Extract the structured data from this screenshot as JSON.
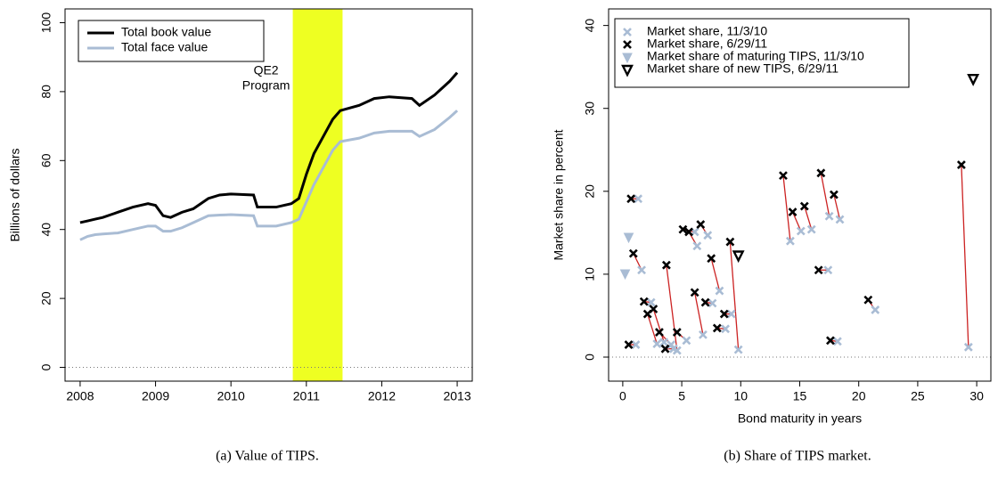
{
  "chart_data": [
    {
      "type": "line",
      "ylabel": "Billions of dollars",
      "caption": "(a)  Value of TIPS.",
      "x": [
        2008.0,
        2008.1,
        2008.2,
        2008.3,
        2008.5,
        2008.7,
        2008.9,
        2009.0,
        2009.1,
        2009.2,
        2009.35,
        2009.5,
        2009.7,
        2009.85,
        2010.0,
        2010.3,
        2010.35,
        2010.6,
        2010.8,
        2010.9,
        2011.0,
        2011.1,
        2011.25,
        2011.35,
        2011.45,
        2011.7,
        2011.9,
        2012.1,
        2012.4,
        2012.5,
        2012.7,
        2012.9,
        2013.0
      ],
      "series": [
        {
          "name": "Total book value",
          "color": "#000000",
          "values": [
            42,
            42.5,
            43,
            43.5,
            45,
            46.5,
            47.5,
            47,
            44,
            43.5,
            45,
            46,
            49,
            50,
            50.3,
            50,
            46.5,
            46.5,
            47.5,
            49,
            56,
            62,
            68,
            72,
            74.5,
            76,
            78,
            78.5,
            78,
            76,
            79,
            83,
            85.5
          ]
        },
        {
          "name": "Total face value",
          "color": "#a9bcd4",
          "values": [
            37,
            38,
            38.5,
            38.7,
            39,
            40,
            41,
            41,
            39.5,
            39.5,
            40.5,
            42,
            44,
            44.2,
            44.3,
            44,
            41,
            41,
            42,
            43,
            48,
            53,
            59,
            63,
            65.5,
            66.5,
            68,
            68.5,
            68.5,
            67,
            69,
            72.5,
            74.5
          ]
        }
      ],
      "xlim": [
        2007.8,
        2013.2
      ],
      "xticks": [
        2008,
        2009,
        2010,
        2011,
        2012,
        2013
      ],
      "ylim": [
        -4,
        104
      ],
      "yticks": [
        0,
        20,
        40,
        60,
        80,
        100
      ],
      "shade": {
        "xmin": 2010.82,
        "xmax": 2011.48,
        "color": "#eeff22"
      },
      "annotation": [
        "QE2",
        "Program"
      ],
      "hline": 0
    },
    {
      "type": "scatter",
      "xlabel": "Bond maturity in years",
      "ylabel": "Market share in percent",
      "caption": "(b)  Share of TIPS market.",
      "series": [
        {
          "name": "Market share, 11/3/10",
          "color": "#a9bcd4",
          "marker": "x",
          "x": [
            1.1,
            1.3,
            1.6,
            2.4,
            2.9,
            3.5,
            4.1,
            4.3,
            4.6,
            5.4,
            6.1,
            6.3,
            6.8,
            7.2,
            7.6,
            8.2,
            8.7,
            9.2,
            9.8,
            14.2,
            15.1,
            16.0,
            17.4,
            17.5,
            18.2,
            18.4,
            21.4,
            29.3
          ],
          "values": [
            1.5,
            19.1,
            10.5,
            6.6,
            1.6,
            1.8,
            1.5,
            1.0,
            0.8,
            2.0,
            15.1,
            13.4,
            2.7,
            14.7,
            6.5,
            8.0,
            3.4,
            5.2,
            0.9,
            14.0,
            15.2,
            15.4,
            10.5,
            17.0,
            1.9,
            16.6,
            5.7,
            1.2
          ]
        },
        {
          "name": "Market share, 6/29/11",
          "color": "#000000",
          "marker": "x",
          "x": [
            0.5,
            0.7,
            0.9,
            1.8,
            2.1,
            2.6,
            3.1,
            3.6,
            3.7,
            4.6,
            5.1,
            5.6,
            6.1,
            6.6,
            7.0,
            7.5,
            8.0,
            8.6,
            9.1,
            13.6,
            14.4,
            15.4,
            16.6,
            16.8,
            17.6,
            17.9,
            20.8,
            28.7
          ],
          "values": [
            1.5,
            19.1,
            12.5,
            6.7,
            5.2,
            5.8,
            3.0,
            1.0,
            11.1,
            3.0,
            15.4,
            15.1,
            7.8,
            16.0,
            6.6,
            11.9,
            3.5,
            5.2,
            13.9,
            21.9,
            17.5,
            18.2,
            10.5,
            22.2,
            2.0,
            19.6,
            6.9,
            23.2
          ]
        },
        {
          "name": "Market share of maturing TIPS, 11/3/10",
          "color": "#a9bcd4",
          "marker": "triangle-filled",
          "x": [
            0.2,
            0.5
          ],
          "values": [
            10.1,
            14.5
          ]
        },
        {
          "name": "Market share of new TIPS, 6/29/11",
          "color": "#000000",
          "marker": "triangle-open",
          "x": [
            9.8,
            29.7
          ],
          "values": [
            12.3,
            33.6
          ]
        }
      ],
      "connect": {
        "from": 1,
        "to": 0,
        "color": "#cc2222"
      },
      "xlim": [
        -1.2,
        31.2
      ],
      "xticks": [
        0,
        5,
        10,
        15,
        20,
        25,
        30
      ],
      "ylim": [
        -2.9,
        42
      ],
      "yticks": [
        0,
        10,
        20,
        30,
        40
      ],
      "hline": 0
    }
  ]
}
